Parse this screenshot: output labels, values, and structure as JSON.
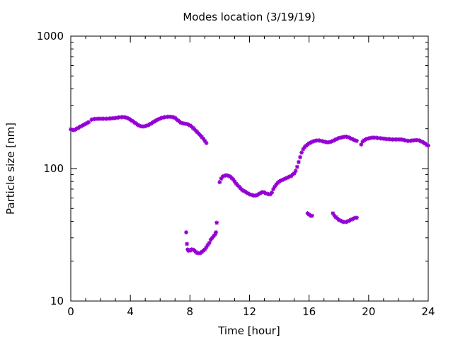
{
  "chart_data": {
    "type": "scatter",
    "title": "Modes location (3/19/19)",
    "xlabel": "Time [hour]",
    "ylabel": "Particle size [nm]",
    "xlim": [
      0,
      24
    ],
    "ylim": [
      10,
      1000
    ],
    "y_scale": "log",
    "xticks": [
      "0",
      "4",
      "8",
      "12",
      "16",
      "20",
      "24"
    ],
    "yticks": [
      "10",
      "100",
      "1000"
    ],
    "grid": false,
    "legend": "none",
    "marker_color": "#9400d3",
    "series": [
      {
        "points": [
          [
            0.0,
            198
          ],
          [
            0.1,
            196
          ],
          [
            0.2,
            195
          ],
          [
            0.3,
            197
          ],
          [
            0.4,
            200
          ],
          [
            0.5,
            203
          ],
          [
            0.6,
            206
          ],
          [
            0.7,
            209
          ],
          [
            0.8,
            212
          ],
          [
            0.9,
            215
          ],
          [
            1.0,
            218
          ],
          [
            1.1,
            221
          ],
          [
            1.2,
            224
          ],
          [
            1.4,
            234
          ],
          [
            1.5,
            236
          ],
          [
            1.6,
            237
          ],
          [
            1.7,
            237
          ],
          [
            1.8,
            238
          ],
          [
            1.9,
            238
          ],
          [
            2.0,
            238
          ],
          [
            2.1,
            238
          ],
          [
            2.2,
            238
          ],
          [
            2.3,
            238
          ],
          [
            2.4,
            238
          ],
          [
            2.5,
            238
          ],
          [
            2.6,
            239
          ],
          [
            2.7,
            239
          ],
          [
            2.8,
            240
          ],
          [
            2.9,
            240
          ],
          [
            3.0,
            241
          ],
          [
            3.1,
            242
          ],
          [
            3.2,
            243
          ],
          [
            3.3,
            244
          ],
          [
            3.4,
            244
          ],
          [
            3.5,
            245
          ],
          [
            3.6,
            244
          ],
          [
            3.7,
            243
          ],
          [
            3.8,
            241
          ],
          [
            3.9,
            238
          ],
          [
            4.0,
            234
          ],
          [
            4.1,
            230
          ],
          [
            4.2,
            226
          ],
          [
            4.3,
            222
          ],
          [
            4.4,
            218
          ],
          [
            4.5,
            214
          ],
          [
            4.6,
            211
          ],
          [
            4.7,
            209
          ],
          [
            4.8,
            208
          ],
          [
            4.9,
            208
          ],
          [
            5.0,
            209
          ],
          [
            5.1,
            211
          ],
          [
            5.2,
            213
          ],
          [
            5.3,
            216
          ],
          [
            5.4,
            219
          ],
          [
            5.5,
            223
          ],
          [
            5.6,
            226
          ],
          [
            5.7,
            230
          ],
          [
            5.8,
            233
          ],
          [
            5.9,
            236
          ],
          [
            6.0,
            239
          ],
          [
            6.1,
            241
          ],
          [
            6.2,
            243
          ],
          [
            6.3,
            244
          ],
          [
            6.4,
            245
          ],
          [
            6.5,
            246
          ],
          [
            6.6,
            246
          ],
          [
            6.7,
            246
          ],
          [
            6.8,
            245
          ],
          [
            6.9,
            244
          ],
          [
            7.0,
            241
          ],
          [
            7.1,
            236
          ],
          [
            7.2,
            231
          ],
          [
            7.3,
            226
          ],
          [
            7.4,
            222
          ],
          [
            7.5,
            220
          ],
          [
            7.6,
            219
          ],
          [
            7.7,
            218
          ],
          [
            7.8,
            217
          ],
          [
            7.9,
            215
          ],
          [
            8.0,
            212
          ],
          [
            8.1,
            208
          ],
          [
            8.2,
            203
          ],
          [
            8.3,
            198
          ],
          [
            8.4,
            193
          ],
          [
            8.5,
            188
          ],
          [
            8.6,
            183
          ],
          [
            8.7,
            178
          ],
          [
            8.8,
            173
          ],
          [
            8.9,
            168
          ],
          [
            9.0,
            162
          ],
          [
            9.1,
            156
          ],
          [
            7.75,
            33
          ],
          [
            7.8,
            27
          ],
          [
            7.85,
            24.5
          ],
          [
            7.9,
            24
          ],
          [
            8.0,
            24
          ],
          [
            8.1,
            24.5
          ],
          [
            8.2,
            24.5
          ],
          [
            8.3,
            24
          ],
          [
            8.4,
            23.5
          ],
          [
            8.5,
            23
          ],
          [
            8.6,
            23
          ],
          [
            8.7,
            23
          ],
          [
            8.8,
            23.5
          ],
          [
            8.9,
            24
          ],
          [
            9.0,
            24.5
          ],
          [
            9.1,
            25.5
          ],
          [
            9.2,
            26.5
          ],
          [
            9.3,
            27.5
          ],
          [
            9.4,
            29
          ],
          [
            9.5,
            30
          ],
          [
            9.6,
            31
          ],
          [
            9.7,
            32
          ],
          [
            9.75,
            33
          ],
          [
            9.8,
            39
          ],
          [
            10.0,
            79
          ],
          [
            10.1,
            84
          ],
          [
            10.2,
            87
          ],
          [
            10.3,
            88
          ],
          [
            10.4,
            89
          ],
          [
            10.5,
            89
          ],
          [
            10.6,
            88
          ],
          [
            10.7,
            87
          ],
          [
            10.8,
            85
          ],
          [
            10.9,
            83
          ],
          [
            11.0,
            80
          ],
          [
            11.1,
            77
          ],
          [
            11.2,
            75
          ],
          [
            11.3,
            73
          ],
          [
            11.4,
            71
          ],
          [
            11.5,
            69
          ],
          [
            11.6,
            68
          ],
          [
            11.7,
            67
          ],
          [
            11.8,
            66
          ],
          [
            11.9,
            65
          ],
          [
            12.0,
            64
          ],
          [
            12.1,
            63.5
          ],
          [
            12.2,
            63
          ],
          [
            12.3,
            62.5
          ],
          [
            12.4,
            62.5
          ],
          [
            12.5,
            63
          ],
          [
            12.6,
            64
          ],
          [
            12.7,
            65
          ],
          [
            12.8,
            66
          ],
          [
            12.9,
            66.5
          ],
          [
            13.0,
            66
          ],
          [
            13.1,
            65
          ],
          [
            13.2,
            64.5
          ],
          [
            13.3,
            64
          ],
          [
            13.4,
            64
          ],
          [
            13.5,
            66
          ],
          [
            13.6,
            70
          ],
          [
            13.7,
            73
          ],
          [
            13.8,
            76
          ],
          [
            13.9,
            78
          ],
          [
            14.0,
            80
          ],
          [
            14.1,
            81
          ],
          [
            14.2,
            82
          ],
          [
            14.3,
            83
          ],
          [
            14.4,
            84
          ],
          [
            14.5,
            85
          ],
          [
            14.6,
            86
          ],
          [
            14.7,
            87
          ],
          [
            14.8,
            88
          ],
          [
            14.9,
            90
          ],
          [
            15.0,
            92
          ],
          [
            15.1,
            96
          ],
          [
            15.2,
            103
          ],
          [
            15.3,
            112
          ],
          [
            15.4,
            122
          ],
          [
            15.5,
            132
          ],
          [
            15.6,
            140
          ],
          [
            15.7,
            145
          ],
          [
            15.8,
            149
          ],
          [
            15.9,
            152
          ],
          [
            16.0,
            155
          ],
          [
            16.1,
            157
          ],
          [
            16.2,
            159
          ],
          [
            16.3,
            161
          ],
          [
            16.4,
            162
          ],
          [
            16.5,
            163
          ],
          [
            16.6,
            163
          ],
          [
            16.7,
            163
          ],
          [
            16.8,
            162
          ],
          [
            16.9,
            161
          ],
          [
            17.0,
            160
          ],
          [
            17.1,
            159
          ],
          [
            17.2,
            158
          ],
          [
            17.3,
            158
          ],
          [
            17.4,
            159
          ],
          [
            17.5,
            160
          ],
          [
            17.6,
            162
          ],
          [
            17.7,
            164
          ],
          [
            17.8,
            166
          ],
          [
            17.9,
            168
          ],
          [
            18.0,
            170
          ],
          [
            18.1,
            171
          ],
          [
            18.2,
            172
          ],
          [
            18.3,
            173
          ],
          [
            18.4,
            174
          ],
          [
            18.5,
            174
          ],
          [
            18.6,
            173
          ],
          [
            18.7,
            171
          ],
          [
            18.8,
            169
          ],
          [
            18.9,
            167
          ],
          [
            19.0,
            165
          ],
          [
            19.1,
            163
          ],
          [
            19.2,
            162
          ],
          [
            15.9,
            46
          ],
          [
            16.0,
            45
          ],
          [
            16.1,
            44
          ],
          [
            16.2,
            44
          ],
          [
            17.6,
            46
          ],
          [
            17.7,
            44
          ],
          [
            17.8,
            43
          ],
          [
            17.9,
            42
          ],
          [
            18.0,
            41
          ],
          [
            18.1,
            40.5
          ],
          [
            18.2,
            40
          ],
          [
            18.3,
            39.5
          ],
          [
            18.4,
            39.5
          ],
          [
            18.5,
            39.5
          ],
          [
            18.6,
            40
          ],
          [
            18.7,
            40.5
          ],
          [
            18.8,
            41
          ],
          [
            18.9,
            41.5
          ],
          [
            19.0,
            42
          ],
          [
            19.1,
            42.5
          ],
          [
            19.2,
            42.5
          ],
          [
            19.5,
            152
          ],
          [
            19.6,
            160
          ],
          [
            19.7,
            164
          ],
          [
            19.8,
            166
          ],
          [
            19.9,
            168
          ],
          [
            20.0,
            169
          ],
          [
            20.1,
            170
          ],
          [
            20.2,
            171
          ],
          [
            20.3,
            171
          ],
          [
            20.4,
            171
          ],
          [
            20.5,
            171
          ],
          [
            20.6,
            170
          ],
          [
            20.7,
            170
          ],
          [
            20.8,
            169
          ],
          [
            20.9,
            169
          ],
          [
            21.0,
            168
          ],
          [
            21.1,
            168
          ],
          [
            21.2,
            167
          ],
          [
            21.3,
            167
          ],
          [
            21.4,
            167
          ],
          [
            21.5,
            166
          ],
          [
            21.6,
            166
          ],
          [
            21.7,
            166
          ],
          [
            21.8,
            166
          ],
          [
            21.9,
            166
          ],
          [
            22.0,
            166
          ],
          [
            22.1,
            166
          ],
          [
            22.2,
            166
          ],
          [
            22.3,
            165
          ],
          [
            22.4,
            164
          ],
          [
            22.5,
            163
          ],
          [
            22.6,
            162
          ],
          [
            22.7,
            162
          ],
          [
            22.8,
            162
          ],
          [
            22.9,
            163
          ],
          [
            23.0,
            163
          ],
          [
            23.1,
            164
          ],
          [
            23.2,
            164
          ],
          [
            23.3,
            164
          ],
          [
            23.4,
            163
          ],
          [
            23.5,
            161
          ],
          [
            23.6,
            159
          ],
          [
            23.7,
            157
          ],
          [
            23.8,
            154
          ],
          [
            23.9,
            151
          ],
          [
            24.0,
            149
          ]
        ]
      }
    ]
  }
}
